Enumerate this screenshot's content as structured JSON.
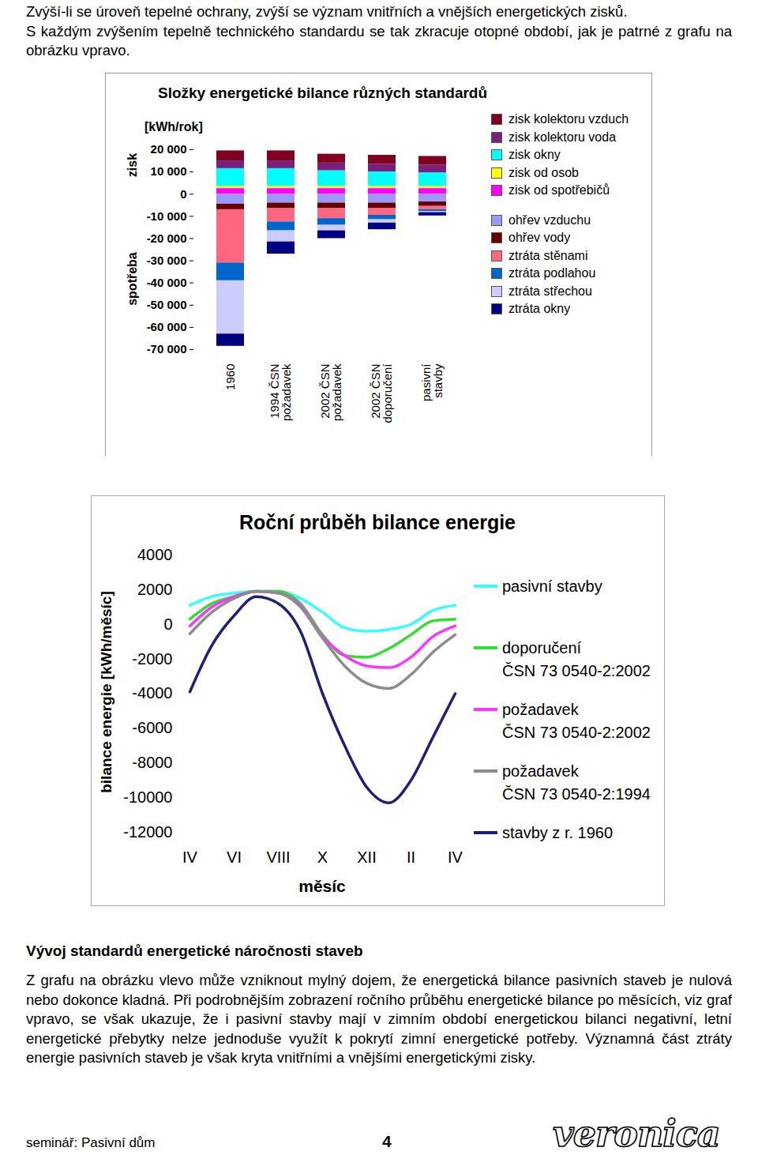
{
  "document": {
    "intro": [
      "Zvýší-li se úroveň tepelné ochrany, zvýší se význam vnitřních a vnějších energetických zisků.",
      "S každým zvýšením tepelně technického standardu se tak zkracuje otopné období, jak je patrné z grafu na obrázku vpravo."
    ],
    "heading": "Vývoj standardů energetické náročnosti staveb",
    "body": "Z grafu na obrázku vlevo může vzniknout mylný dojem, že energetická bilance pasivních staveb je nulová nebo dokonce kladná. Při podrobnějším zobrazení ročního průběhu energetické bilance po měsících, viz graf vpravo, se však ukazuje, že i pasivní stavby mají v zimním období energetickou bilanci negativní, letní energetické přebytky nelze jednoduše využít k pokrytí zimní energetické potřeby. Významná část ztráty energie pasivních staveb je však kryta vnitřními a vnějšími energetickými zisky.",
    "footer": {
      "left": "seminář: Pasivní dům",
      "page": 4,
      "logo": "veronica"
    }
  },
  "chart_data": [
    {
      "type": "bar",
      "title": "Složky energetické bilance různých standardů",
      "ylabel": "[kWh/rok]",
      "annotations": [
        "zisk",
        "spotřeba"
      ],
      "stacked": true,
      "legend": "right",
      "categories": [
        "1960",
        "1994 ČSN\npožadavek",
        "2002 ČSN\npožadavek",
        "2002 ČSN\ndoporučení",
        "pasivní\nstavby"
      ],
      "series": [
        {
          "name": "zisk kolektoru vzduch",
          "color": "#800020",
          "values": [
            4500,
            4500,
            4000,
            4000,
            4000
          ]
        },
        {
          "name": "zisk kolektoru voda",
          "color": "#7a1f7a",
          "values": [
            3500,
            3500,
            3500,
            3500,
            3500
          ]
        },
        {
          "name": "zisk okny",
          "color": "#00ffff",
          "values": [
            8000,
            8000,
            7000,
            6500,
            6000
          ]
        },
        {
          "name": "zisk od osob",
          "color": "#ffff00",
          "values": [
            1000,
            1000,
            1000,
            1000,
            1000
          ]
        },
        {
          "name": "zisk od spotřebičů",
          "color": "#ff00ff",
          "values": [
            2500,
            2500,
            2500,
            2500,
            2500
          ]
        },
        {
          "name": "ohřev vzduchu",
          "color": "#9999ff",
          "values": [
            -4500,
            -4000,
            -4000,
            -4000,
            -3500
          ]
        },
        {
          "name": "ohřev vody",
          "color": "#660000",
          "values": [
            -2500,
            -2500,
            -2500,
            -2500,
            -2000
          ]
        },
        {
          "name": "ztráta stěnami",
          "color": "#ff6680",
          "values": [
            -24000,
            -6000,
            -4500,
            -3000,
            -1500
          ]
        },
        {
          "name": "ztráta podlahou",
          "color": "#0066cc",
          "values": [
            -8000,
            -4000,
            -3000,
            -2000,
            -800
          ]
        },
        {
          "name": "ztráta střechou",
          "color": "#ccccff",
          "values": [
            -24000,
            -5000,
            -2500,
            -1500,
            -500
          ]
        },
        {
          "name": "ztráta okny",
          "color": "#000080",
          "values": [
            -5500,
            -5500,
            -3500,
            -3000,
            -1500
          ]
        }
      ],
      "ylim": [
        -70000,
        20000
      ],
      "yticks": [
        {
          "value": -70000,
          "label": "-70 000"
        },
        {
          "value": -60000,
          "label": "-60 000"
        },
        {
          "value": -50000,
          "label": "-50 000"
        },
        {
          "value": -40000,
          "label": "-40 000"
        },
        {
          "value": -30000,
          "label": "-30 000"
        },
        {
          "value": -20000,
          "label": "-20 000"
        },
        {
          "value": -10000,
          "label": "-10 000"
        },
        0,
        {
          "value": 10000,
          "label": "10 000"
        },
        {
          "value": 20000,
          "label": "20 000"
        }
      ]
    },
    {
      "type": "line",
      "title": "Roční průběh bilance energie",
      "xlabel": "měsíc",
      "ylabel": "bilance energie [kWh/měsíc]",
      "legend": "right",
      "categories": [
        "IV",
        null,
        "VI",
        null,
        "VIII",
        null,
        "X",
        null,
        "XII",
        null,
        "II",
        null,
        "IV"
      ],
      "series": [
        {
          "name": "pasivní stavby",
          "color": "#33ffff",
          "values": [
            1100,
            1600,
            1800,
            1900,
            1900,
            1500,
            700,
            -200,
            -400,
            -300,
            0,
            800,
            1100
          ]
        },
        {
          "name": "doporučení\nČSN 73 0540-2:2002",
          "color": "#33dd33",
          "values": [
            300,
            1200,
            1600,
            1900,
            1900,
            1200,
            -600,
            -1800,
            -1900,
            -1400,
            -600,
            200,
            300
          ]
        },
        {
          "name": "požadavek\nČSN 73 0540-2:2002",
          "color": "#ff33ff",
          "values": [
            -100,
            1000,
            1600,
            1900,
            1800,
            1100,
            -700,
            -1800,
            -2400,
            -2500,
            -1900,
            -700,
            -100
          ]
        },
        {
          "name": "požadavek\nČSN 73 0540-2:1994",
          "color": "#8c8c8c",
          "values": [
            -550,
            700,
            1500,
            1900,
            1800,
            1000,
            -800,
            -2400,
            -3400,
            -3700,
            -2900,
            -1600,
            -600
          ]
        },
        {
          "name": "stavby z r. 1960",
          "color": "#1f1f7a",
          "values": [
            -3900,
            -1200,
            500,
            1600,
            1200,
            -400,
            -4000,
            -7000,
            -9400,
            -10300,
            -9000,
            -6500,
            -4000
          ]
        }
      ],
      "ylim": [
        -12000,
        4000
      ],
      "yticks": [
        -12000,
        -10000,
        -8000,
        -6000,
        -4000,
        -2000,
        0,
        2000,
        4000
      ]
    }
  ]
}
